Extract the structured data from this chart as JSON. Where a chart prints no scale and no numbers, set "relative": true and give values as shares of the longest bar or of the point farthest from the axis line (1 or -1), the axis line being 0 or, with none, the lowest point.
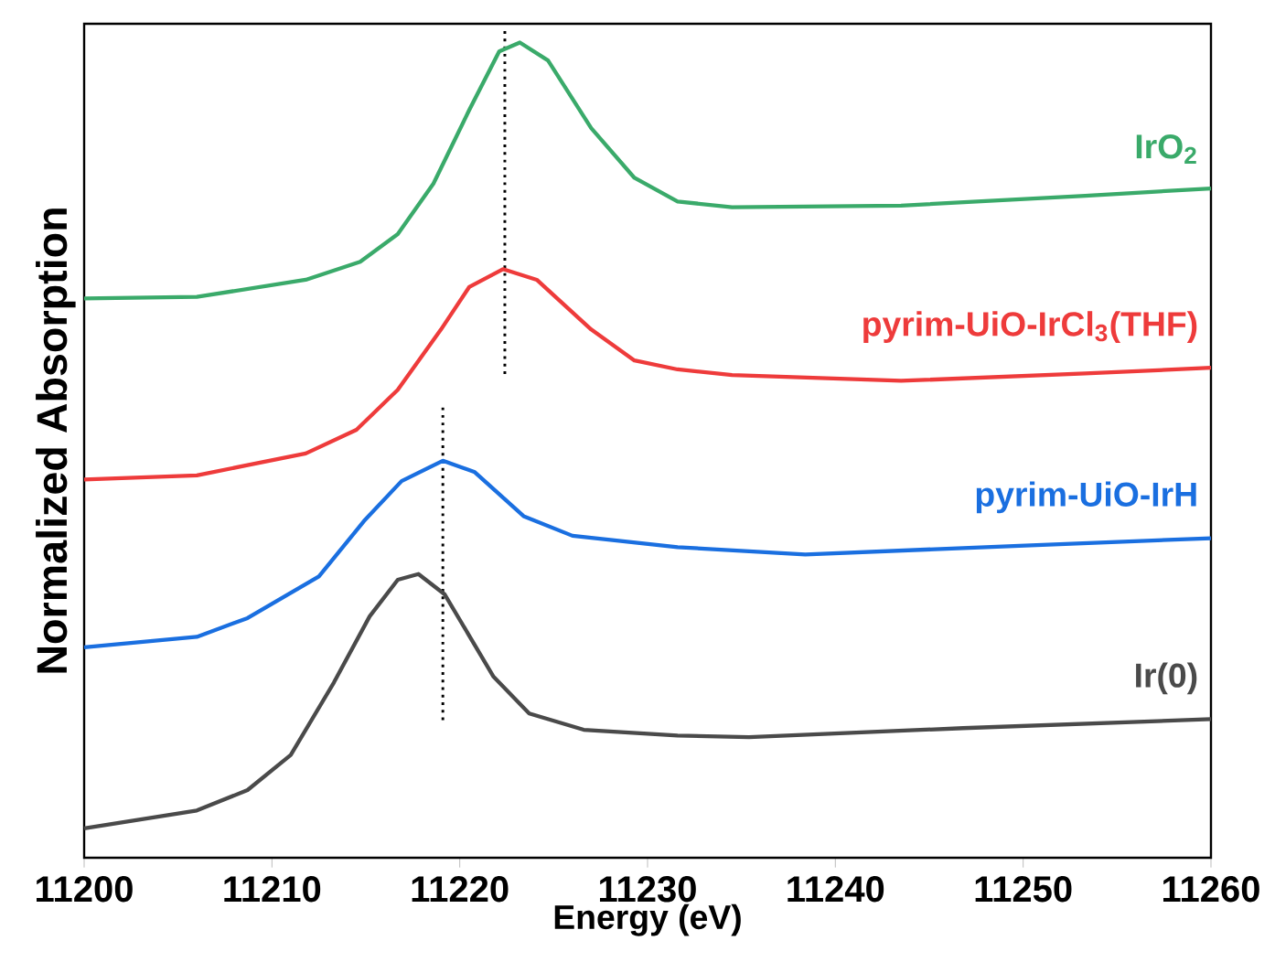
{
  "chart_data": {
    "type": "line",
    "relative": true,
    "xlabel": "Energy (eV)",
    "ylabel": "Normalized Absorption",
    "xlim": [
      11200,
      11260
    ],
    "xticks": [
      11200,
      11210,
      11220,
      11230,
      11240,
      11250,
      11260
    ],
    "grid": false,
    "marker": "none",
    "line_style": "solid",
    "series": [
      {
        "name": "IrO$_{2}$",
        "color": "#3aaa6a",
        "x": [
          11200,
          11206,
          11211.8,
          11214.7,
          11216.7,
          11218.6,
          11220.5,
          11222.1,
          11223.2,
          11224.7,
          11227.0,
          11229.3,
          11231.6,
          11234.5,
          11243.5,
          11253.3,
          11260
        ],
        "values": [
          0.686,
          0.688,
          0.709,
          0.731,
          0.765,
          0.827,
          0.917,
          0.989,
          1.0,
          0.978,
          0.895,
          0.834,
          0.805,
          0.798,
          0.8,
          0.812,
          0.821
        ]
      },
      {
        "name": "pyrim-UiO-IrCl$_{3}$(THF)",
        "color": "#ee3b3b",
        "x": [
          11200,
          11206,
          11211.8,
          11214.5,
          11216.7,
          11219,
          11220.5,
          11222.3,
          11224.1,
          11227,
          11229.3,
          11231.6,
          11234.5,
          11243.5,
          11253.3,
          11260
        ],
        "values": [
          0.464,
          0.469,
          0.496,
          0.525,
          0.574,
          0.648,
          0.7,
          0.722,
          0.709,
          0.648,
          0.61,
          0.599,
          0.592,
          0.585,
          0.594,
          0.601
        ]
      },
      {
        "name": "pyrim-UiO-IrH",
        "color": "#1a6fe0",
        "x": [
          11200,
          11206,
          11208.7,
          11212.5,
          11214.9,
          11216.9,
          11219.1,
          11220.8,
          11223.4,
          11226.0,
          11231.6,
          11238.4,
          11250.1,
          11260
        ],
        "values": [
          0.258,
          0.271,
          0.294,
          0.345,
          0.413,
          0.462,
          0.487,
          0.473,
          0.419,
          0.395,
          0.381,
          0.372,
          0.383,
          0.392
        ]
      },
      {
        "name": "Ir(0)",
        "color": "#4a4a4a",
        "x": [
          11200,
          11206,
          11208.7,
          11211,
          11213.3,
          11215.2,
          11216.7,
          11217.8,
          11219.2,
          11221.8,
          11223.7,
          11226.6,
          11231.6,
          11235.4,
          11246.8,
          11260
        ],
        "values": [
          0.036,
          0.058,
          0.083,
          0.126,
          0.215,
          0.296,
          0.341,
          0.348,
          0.323,
          0.222,
          0.177,
          0.157,
          0.15,
          0.148,
          0.159,
          0.17
        ]
      }
    ],
    "ref_lines": [
      {
        "axis": "x",
        "value": 11222.4,
        "color": "#000000",
        "line_style": "dotted"
      },
      {
        "axis": "x",
        "value": 11219.1,
        "color": "#000000",
        "line_style": "dotted"
      }
    ]
  }
}
